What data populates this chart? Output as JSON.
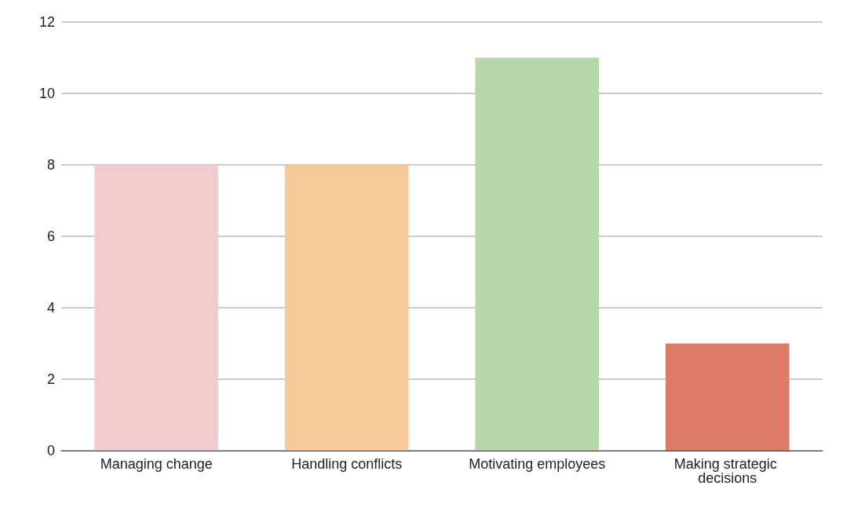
{
  "chart_data": {
    "type": "bar",
    "categories": [
      "Managing change",
      "Handling conflicts",
      "Motivating employees",
      "Making strategic decisions"
    ],
    "values": [
      8,
      8,
      11,
      3
    ],
    "colors": [
      "#f2cccc",
      "#f6c99b",
      "#b6d7a8",
      "#dd7b69"
    ],
    "ylim": [
      0,
      12
    ],
    "yticks": [
      0,
      2,
      4,
      6,
      8,
      10,
      12
    ],
    "grid": "y"
  }
}
